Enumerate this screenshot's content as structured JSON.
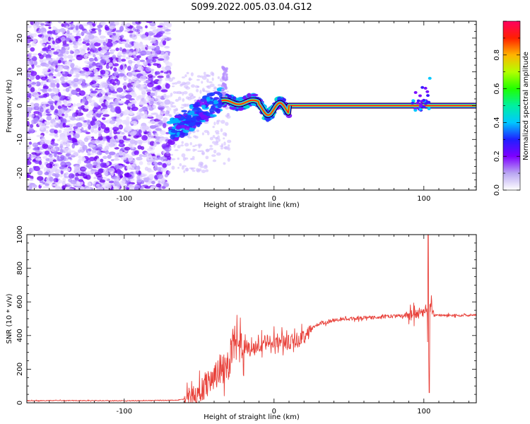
{
  "title": "S099.2022.005.03.04.G12",
  "chart_data": [
    {
      "type": "heatmap",
      "xlabel": "Height of straight line (km)",
      "ylabel": "Frequency (Hz)",
      "xlim": [
        -165,
        135
      ],
      "ylim": [
        -25,
        25
      ],
      "xticks": [
        -100,
        0,
        100
      ],
      "yticks": [
        -20,
        -10,
        0,
        10,
        20
      ],
      "colorbar": {
        "label": "Normalized spectral amplitude",
        "range": [
          0,
          1
        ],
        "ticks": [
          0.0,
          0.2,
          0.4,
          0.6,
          0.8
        ]
      },
      "features": {
        "noise_region_x": [
          -165,
          -70
        ],
        "transition_x": [
          -70,
          10
        ],
        "line_x": [
          10,
          135
        ],
        "line_frequency": 0
      }
    },
    {
      "type": "line",
      "xlabel": "Height of straight line (km)",
      "ylabel": "SNR (10 * v/v)",
      "xlim": [
        -165,
        135
      ],
      "ylim": [
        0,
        1000
      ],
      "xticks": [
        -100,
        0,
        100
      ],
      "yticks": [
        0,
        200,
        400,
        600,
        800,
        1000
      ],
      "series": [
        {
          "color": "#e8413a",
          "points": [
            [
              -165,
              12
            ],
            [
              -140,
              14
            ],
            [
              -120,
              13
            ],
            [
              -100,
              12
            ],
            [
              -80,
              14
            ],
            [
              -65,
              16
            ],
            [
              -55,
              30
            ],
            [
              -50,
              60
            ],
            [
              -45,
              110
            ],
            [
              -40,
              160
            ],
            [
              -35,
              200
            ],
            [
              -30,
              240
            ],
            [
              -27,
              380
            ],
            [
              -25,
              300
            ],
            [
              -20,
              340
            ],
            [
              -15,
              310
            ],
            [
              -10,
              340
            ],
            [
              -5,
              360
            ],
            [
              0,
              370
            ],
            [
              5,
              370
            ],
            [
              10,
              360
            ],
            [
              15,
              370
            ],
            [
              20,
              400
            ],
            [
              25,
              440
            ],
            [
              30,
              470
            ],
            [
              40,
              490
            ],
            [
              50,
              500
            ],
            [
              60,
              505
            ],
            [
              70,
              510
            ],
            [
              80,
              515
            ],
            [
              90,
              520
            ],
            [
              95,
              530
            ],
            [
              100,
              540
            ],
            [
              102,
              580
            ],
            [
              103,
              180
            ],
            [
              104,
              560
            ],
            [
              105,
              600
            ],
            [
              106,
              520
            ],
            [
              110,
              520
            ],
            [
              120,
              520
            ],
            [
              135,
              520
            ]
          ]
        }
      ]
    }
  ]
}
